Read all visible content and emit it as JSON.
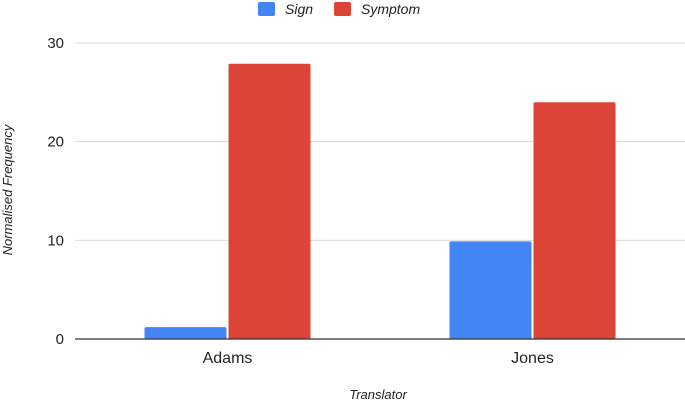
{
  "chart_data": {
    "type": "bar",
    "categories": [
      "Adams",
      "Jones"
    ],
    "series": [
      {
        "name": "Sign",
        "values": [
          1.2,
          9.9
        ],
        "color": "#4285f4"
      },
      {
        "name": "Symptom",
        "values": [
          27.9,
          24.0
        ],
        "color": "#db4437"
      }
    ],
    "xlabel": "Translator",
    "ylabel": "Normalised Frequency",
    "ylim": [
      0,
      30
    ],
    "yticks": [
      "0",
      "10",
      "20",
      "30"
    ],
    "grid": true,
    "legend_position": "top"
  }
}
